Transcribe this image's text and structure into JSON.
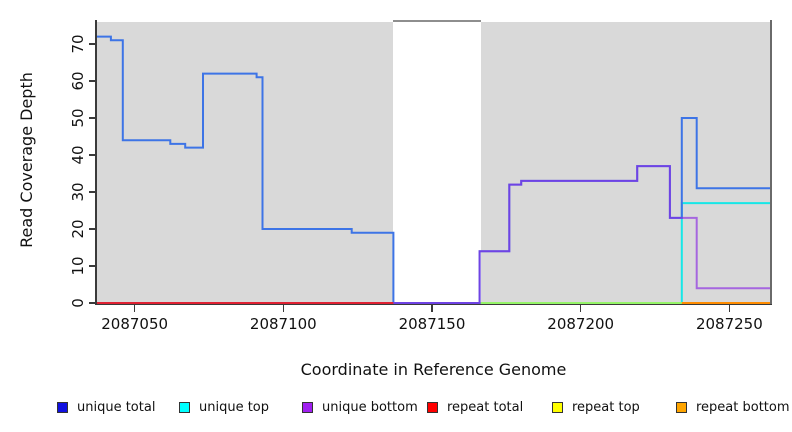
{
  "chart_data": {
    "type": "line",
    "subtype": "step",
    "title": "",
    "xlabel": "Coordinate in Reference Genome",
    "ylabel": "Read Coverage Depth",
    "xlim": [
      2087037,
      2087264
    ],
    "ylim": [
      0,
      76.5
    ],
    "x_ticks": [
      2087050,
      2087100,
      2087150,
      2087200,
      2087250
    ],
    "y_ticks": [
      0,
      10,
      20,
      30,
      40,
      50,
      60,
      70
    ],
    "grid": false,
    "plot_background_color": "#D9D9D9",
    "masked_region": {
      "x_start": 2087137,
      "x_end": 2087166.5,
      "color": "#FFFFFF",
      "top_border_color": "#8E8E8E"
    },
    "series": [
      {
        "name": "unique top",
        "line_color": "#00E8E8",
        "line_opacity": 0.9,
        "points": [
          [
            2087037,
            0
          ],
          [
            2087234,
            27
          ],
          [
            2087264,
            27
          ]
        ]
      },
      {
        "name": "repeat top",
        "line_color": "#FFFF00",
        "line_opacity": 0.55,
        "points": [
          [
            2087037,
            0
          ],
          [
            2087264,
            0
          ]
        ]
      },
      {
        "name": "repeat bottom",
        "line_color": "#FF8C00",
        "line_opacity": 1,
        "points": [
          [
            2087234,
            0
          ],
          [
            2087264,
            0
          ]
        ]
      },
      {
        "name": "unique total",
        "line_color": "#3D74E6",
        "line_opacity": 1,
        "points": [
          [
            2087037,
            72
          ],
          [
            2087042,
            71
          ],
          [
            2087046,
            44
          ],
          [
            2087062,
            43
          ],
          [
            2087067,
            42
          ],
          [
            2087073,
            62
          ],
          [
            2087091,
            61
          ],
          [
            2087093,
            20
          ],
          [
            2087123,
            19
          ],
          [
            2087137,
            0
          ],
          [
            2087166,
            14
          ],
          [
            2087176,
            32
          ],
          [
            2087180,
            33
          ],
          [
            2087219,
            37
          ],
          [
            2087230,
            23
          ],
          [
            2087234,
            50
          ],
          [
            2087239,
            31
          ],
          [
            2087264,
            31
          ]
        ]
      },
      {
        "name": "unique bottom",
        "line_color": "#8A2BE2",
        "line_opacity": 0.66,
        "points": [
          [
            2087037,
            0
          ],
          [
            2087166,
            14
          ],
          [
            2087176,
            32
          ],
          [
            2087180,
            33
          ],
          [
            2087219,
            37
          ],
          [
            2087230,
            23
          ],
          [
            2087239,
            4
          ],
          [
            2087264,
            4
          ]
        ]
      },
      {
        "name": "repeat total",
        "line_color": "#E02233",
        "line_opacity": 1,
        "points": [
          [
            2087037,
            0
          ],
          [
            2087137,
            0
          ]
        ]
      }
    ],
    "legend": {
      "position": "bottom",
      "items": [
        {
          "label": "unique total",
          "color": "#1010E0"
        },
        {
          "label": "unique top",
          "color": "#00FFFF"
        },
        {
          "label": "unique bottom",
          "color": "#A020F0"
        },
        {
          "label": "repeat total",
          "color": "#FF0000"
        },
        {
          "label": "repeat top",
          "color": "#FFFF00"
        },
        {
          "label": "repeat bottom",
          "color": "#FFA500"
        }
      ]
    }
  }
}
